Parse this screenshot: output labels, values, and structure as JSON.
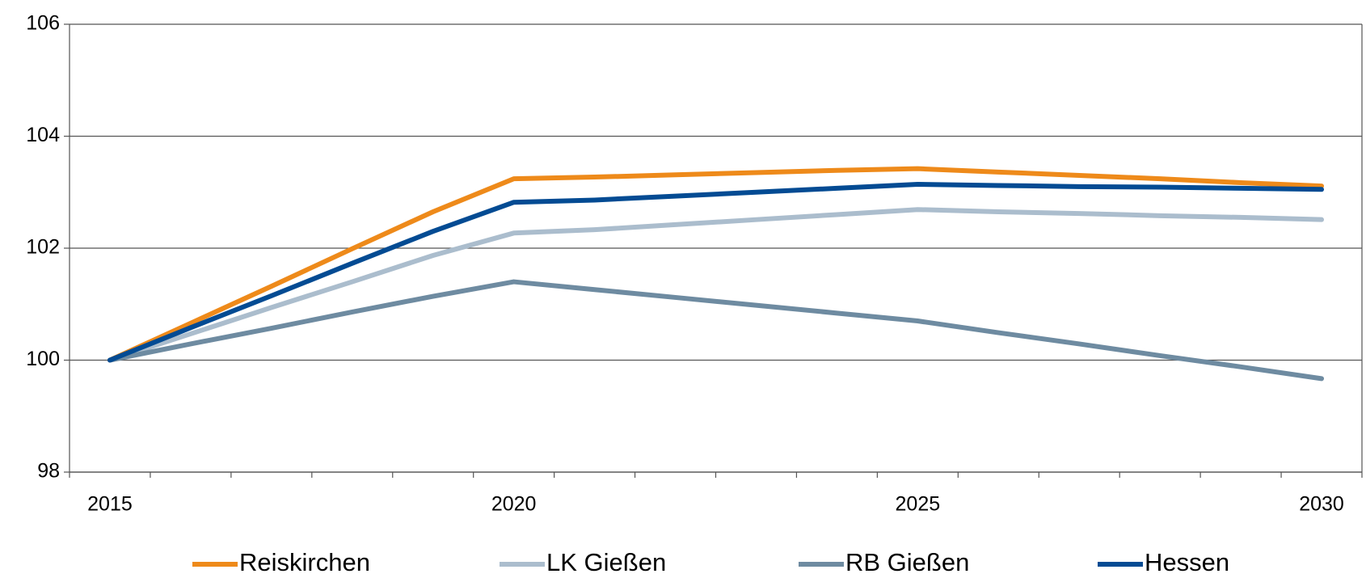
{
  "chart_data": {
    "type": "line",
    "categories": [
      "2015",
      null,
      null,
      null,
      null,
      "2020",
      null,
      null,
      null,
      null,
      "2025",
      null,
      null,
      null,
      null,
      "2030"
    ],
    "series": [
      {
        "name": "Reiskirchen",
        "color": "#ee8a1a",
        "values": [
          100,
          100.66,
          101.32,
          101.99,
          102.65,
          103.24,
          103.27,
          103.31,
          103.35,
          103.39,
          103.42,
          103.36,
          103.3,
          103.24,
          103.17,
          103.11
        ]
      },
      {
        "name": "LK Gießen",
        "color": "#abbdcd",
        "values": [
          100,
          100.47,
          100.94,
          101.4,
          101.87,
          102.27,
          102.33,
          102.42,
          102.51,
          102.6,
          102.69,
          102.65,
          102.62,
          102.58,
          102.55,
          102.51
        ]
      },
      {
        "name": "RB Gießen",
        "color": "#6e8ba1",
        "values": [
          100,
          100.29,
          100.57,
          100.86,
          101.14,
          101.4,
          101.26,
          101.12,
          100.98,
          100.84,
          100.7,
          100.49,
          100.29,
          100.08,
          99.88,
          99.67
        ]
      },
      {
        "name": "Hessen",
        "color": "#034b93",
        "values": [
          100,
          100.58,
          101.15,
          101.73,
          102.3,
          102.82,
          102.86,
          102.93,
          103.0,
          103.07,
          103.14,
          103.12,
          103.1,
          103.09,
          103.07,
          103.05
        ]
      }
    ],
    "ylim": [
      98,
      106
    ],
    "yticks": [
      98,
      100,
      102,
      104,
      106
    ],
    "grid": true,
    "legend": "bottom"
  }
}
